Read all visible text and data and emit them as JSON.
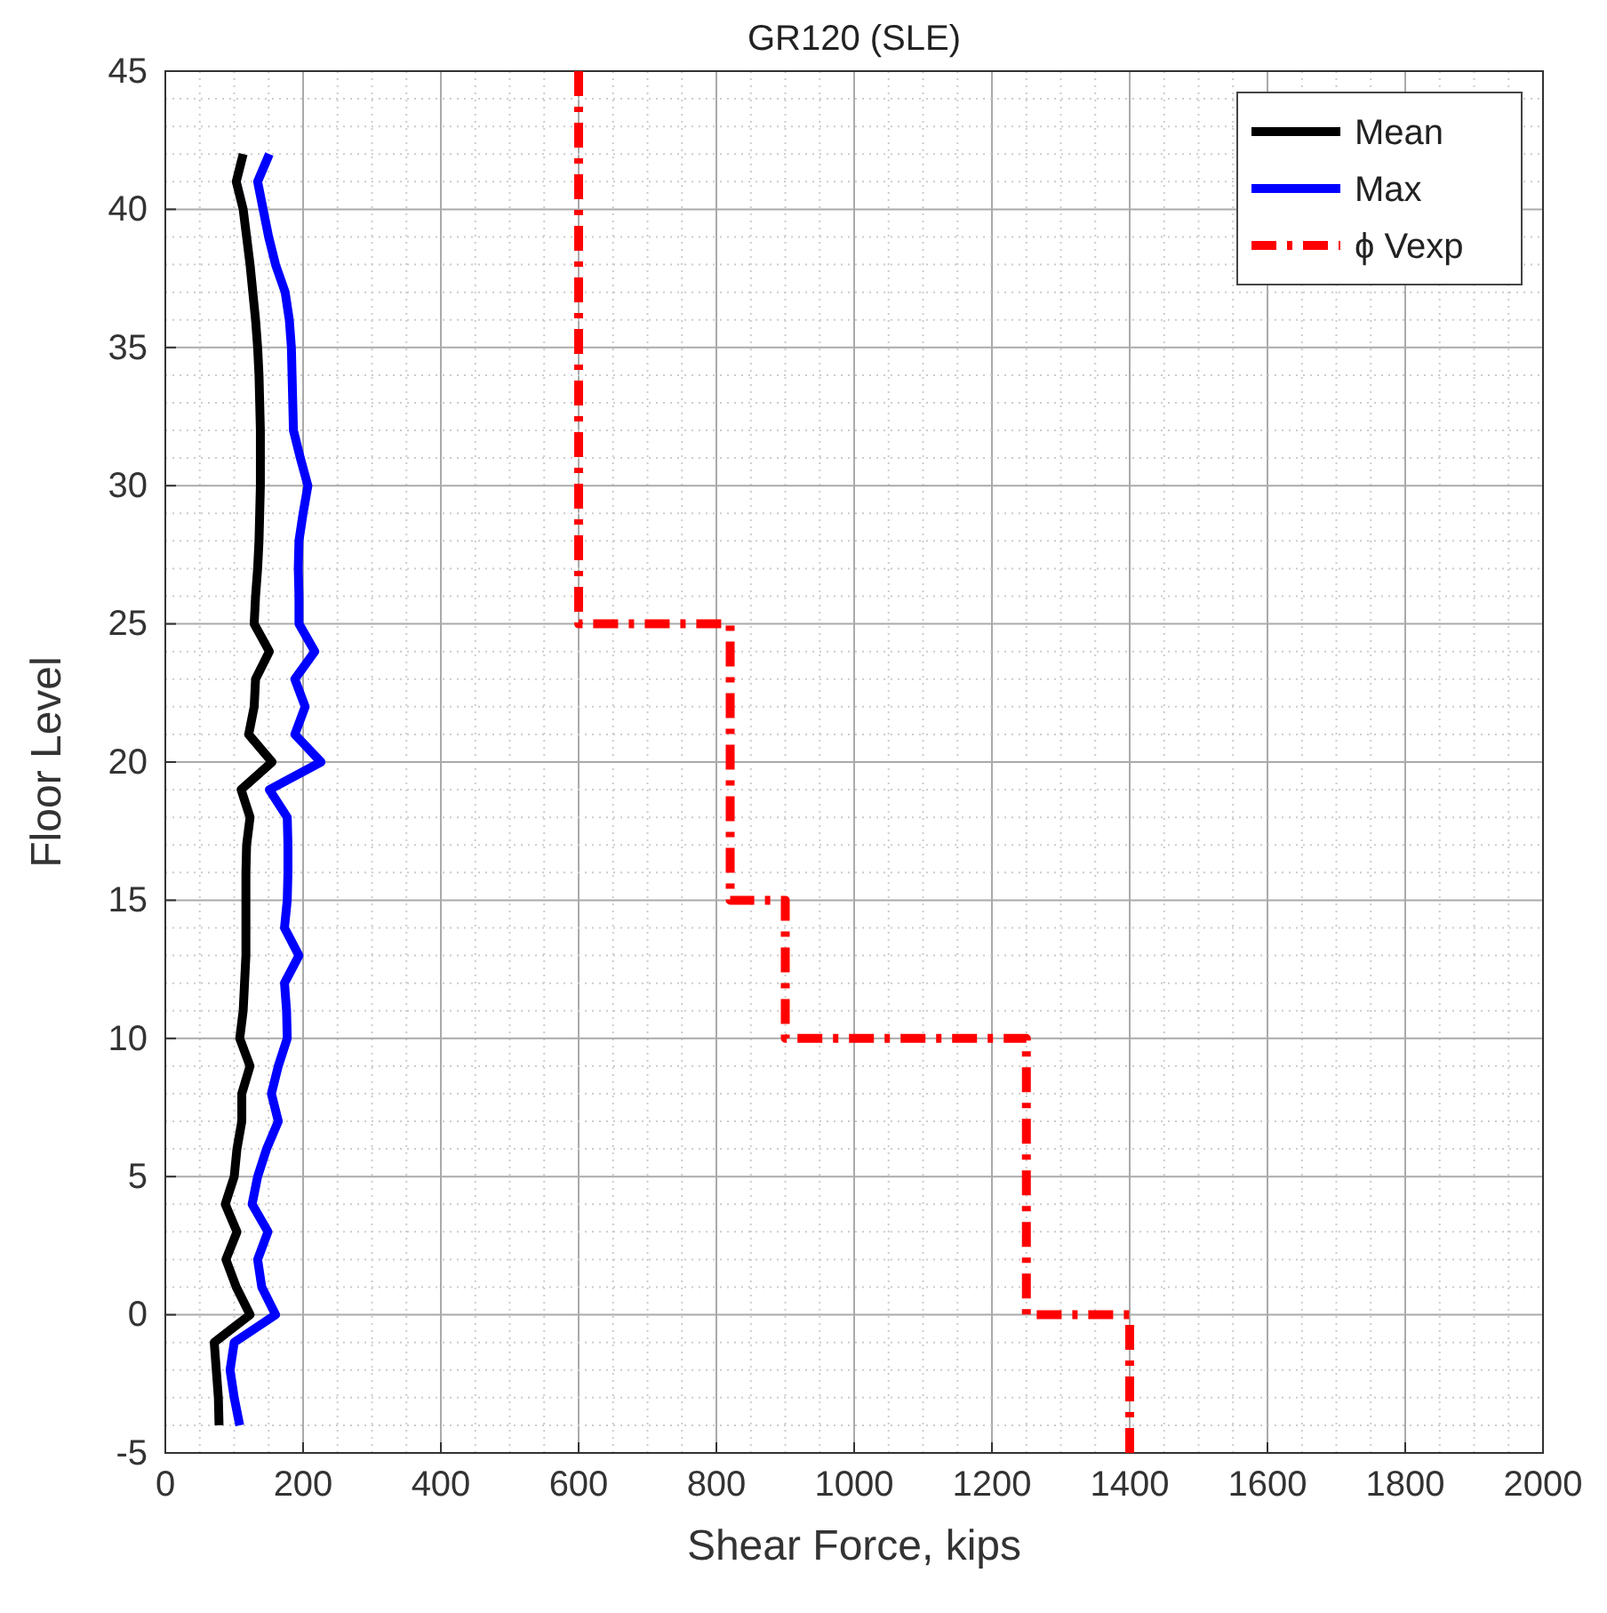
{
  "chart_data": {
    "type": "line",
    "title": "GR120 (SLE)",
    "xlabel": "Shear Force, kips",
    "ylabel": "Floor Level",
    "xlim": [
      0,
      2000
    ],
    "xticks": [
      0,
      200,
      400,
      600,
      800,
      1000,
      1200,
      1400,
      1600,
      1800,
      2000
    ],
    "ylim": [
      -5,
      45
    ],
    "yticks": [
      -5,
      0,
      5,
      10,
      15,
      20,
      25,
      30,
      35,
      40,
      45
    ],
    "grid": true,
    "legend": "top right",
    "series": [
      {
        "name": "Mean",
        "color": "#000000",
        "line_style": "solid",
        "x": [
          78,
          77,
          74,
          71,
          123,
          103,
          88,
          104,
          87,
          100,
          104,
          111,
          111,
          123,
          108,
          113,
          115,
          117,
          117,
          117,
          117,
          118,
          123,
          110,
          155,
          121,
          129,
          131,
          151,
          129,
          131,
          134,
          136,
          137,
          138,
          138,
          138,
          137,
          136,
          134,
          131,
          127,
          123,
          118,
          113,
          103,
          113
        ],
        "values": [
          -4,
          -3,
          -2,
          -1,
          0,
          1,
          2,
          3,
          4,
          5,
          6,
          7,
          8,
          9,
          10,
          11,
          12,
          13,
          14,
          15,
          16,
          17,
          18,
          19,
          20,
          21,
          22,
          23,
          24,
          25,
          26,
          27,
          28,
          29,
          30,
          31,
          32,
          33,
          34,
          35,
          36,
          37,
          38,
          39,
          40,
          41,
          42
        ]
      },
      {
        "name": "Max",
        "color": "#0000ff",
        "line_style": "solid",
        "x": [
          108,
          100,
          94,
          100,
          160,
          140,
          134,
          149,
          126,
          134,
          147,
          164,
          154,
          164,
          177,
          176,
          173,
          194,
          173,
          177,
          178,
          178,
          177,
          151,
          226,
          188,
          203,
          188,
          217,
          194,
          194,
          193,
          194,
          200,
          207,
          196,
          186,
          185,
          184,
          183,
          180,
          174,
          160,
          150,
          142,
          134,
          151
        ],
        "values": [
          -4,
          -3,
          -2,
          -1,
          0,
          1,
          2,
          3,
          4,
          5,
          6,
          7,
          8,
          9,
          10,
          11,
          12,
          13,
          14,
          15,
          16,
          17,
          18,
          19,
          20,
          21,
          22,
          23,
          24,
          25,
          26,
          27,
          28,
          29,
          30,
          31,
          32,
          33,
          34,
          35,
          36,
          37,
          38,
          39,
          40,
          41,
          42
        ]
      },
      {
        "name": "ϕ Vexp",
        "color": "#ff0000",
        "line_style": "dashed",
        "x": [
          1400,
          1400,
          1250,
          1250,
          900,
          900,
          820,
          820,
          600,
          600
        ],
        "values": [
          -5,
          0,
          0,
          10,
          10,
          15,
          15,
          25,
          25,
          45
        ]
      }
    ]
  }
}
